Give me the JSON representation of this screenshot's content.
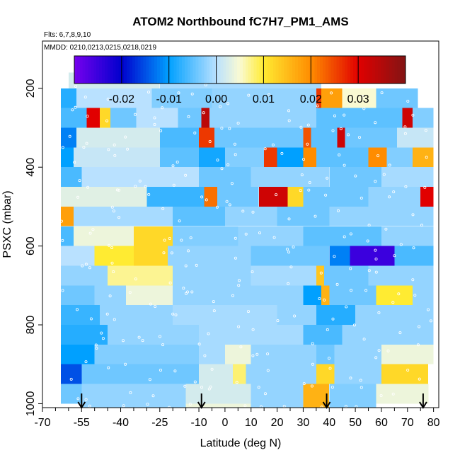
{
  "chart_data": {
    "type": "heatmap",
    "title": "ATOM2 Northbound fC7H7_PM1_AMS",
    "subtitle_flights": "Flts: 6,7,8,9,10",
    "subtitle_dates": "MMDD: 0210,0213,0215,0218,0219",
    "xlabel": "Latitude (deg N)",
    "ylabel": "PSXC (mbar)",
    "xlim": [
      -70,
      82
    ],
    "ylim": [
      1010,
      80
    ],
    "x_ticks": [
      -70,
      -55,
      -40,
      -25,
      -10,
      0,
      10,
      20,
      30,
      40,
      50,
      60,
      70,
      80
    ],
    "x_tick_labels": [
      "-70",
      "-55",
      "-40",
      "-25",
      "-10",
      "0",
      "10",
      "20",
      "30",
      "40",
      "50",
      "60",
      "70",
      "80"
    ],
    "y_ticks": [
      200,
      400,
      600,
      800,
      1000
    ],
    "y_tick_labels": [
      "200",
      "400",
      "600",
      "800",
      "1000"
    ],
    "colorbar": {
      "range": [
        -0.03,
        0.04
      ],
      "ticks": [
        -0.02,
        -0.01,
        0.0,
        0.01,
        0.02,
        0.03
      ],
      "tick_labels": [
        "-0.02",
        "-0.01",
        "0.00",
        "0.01",
        "0.02",
        "0.03"
      ]
    },
    "arrows_lat": [
      -55,
      -9,
      39,
      76
    ],
    "pressure_bands": [
      {
        "p_top": 160,
        "p_bot": 200,
        "segments": [
          {
            "x0": -60,
            "x1": -25,
            "v": 0.002
          },
          {
            "x0": -25,
            "x1": 37,
            "v": -0.001
          }
        ]
      },
      {
        "p_top": 200,
        "p_bot": 250,
        "segments": [
          {
            "x0": -63,
            "x1": -57,
            "v": -0.008
          },
          {
            "x0": -57,
            "x1": -28,
            "v": 0.0
          },
          {
            "x0": -28,
            "x1": -5,
            "v": -0.003
          },
          {
            "x0": -5,
            "x1": 35,
            "v": -0.002
          },
          {
            "x0": 35,
            "x1": 37,
            "v": 0.026
          },
          {
            "x0": 37,
            "x1": 45,
            "v": 0.018
          },
          {
            "x0": 45,
            "x1": 58,
            "v": 0.005
          },
          {
            "x0": 58,
            "x1": 74,
            "v": -0.004
          }
        ]
      },
      {
        "p_top": 250,
        "p_bot": 300,
        "segments": [
          {
            "x0": -63,
            "x1": -53,
            "v": -0.006
          },
          {
            "x0": -53,
            "x1": -48,
            "v": 0.03
          },
          {
            "x0": -48,
            "x1": -44,
            "v": 0.012
          },
          {
            "x0": -44,
            "x1": -34,
            "v": -0.004
          },
          {
            "x0": -34,
            "x1": -18,
            "v": 0.0
          },
          {
            "x0": -18,
            "x1": -9,
            "v": -0.004
          },
          {
            "x0": -9,
            "x1": -6,
            "v": 0.034
          },
          {
            "x0": -6,
            "x1": 35,
            "v": -0.002
          },
          {
            "x0": 35,
            "x1": 68,
            "v": -0.005
          },
          {
            "x0": 68,
            "x1": 72,
            "v": 0.032
          },
          {
            "x0": 72,
            "x1": 80,
            "v": -0.003
          }
        ]
      },
      {
        "p_top": 300,
        "p_bot": 350,
        "segments": [
          {
            "x0": -63,
            "x1": -57,
            "v": -0.012
          },
          {
            "x0": -57,
            "x1": -25,
            "v": 0.002
          },
          {
            "x0": -25,
            "x1": -10,
            "v": -0.006
          },
          {
            "x0": -10,
            "x1": -4,
            "v": 0.026
          },
          {
            "x0": -4,
            "x1": 30,
            "v": -0.004
          },
          {
            "x0": 30,
            "x1": 33,
            "v": 0.024
          },
          {
            "x0": 33,
            "x1": 43,
            "v": -0.005
          },
          {
            "x0": 43,
            "x1": 46,
            "v": 0.032
          },
          {
            "x0": 46,
            "x1": 66,
            "v": -0.004
          },
          {
            "x0": 66,
            "x1": 80,
            "v": 0.001
          }
        ]
      },
      {
        "p_top": 350,
        "p_bot": 400,
        "segments": [
          {
            "x0": -63,
            "x1": -58,
            "v": -0.01
          },
          {
            "x0": -58,
            "x1": -25,
            "v": 0.001
          },
          {
            "x0": -25,
            "x1": -10,
            "v": -0.005
          },
          {
            "x0": -10,
            "x1": 0,
            "v": -0.009
          },
          {
            "x0": 0,
            "x1": 15,
            "v": -0.003
          },
          {
            "x0": 15,
            "x1": 20,
            "v": 0.026
          },
          {
            "x0": 20,
            "x1": 30,
            "v": -0.01
          },
          {
            "x0": 30,
            "x1": 35,
            "v": 0.02
          },
          {
            "x0": 35,
            "x1": 55,
            "v": -0.005
          },
          {
            "x0": 55,
            "x1": 62,
            "v": 0.02
          },
          {
            "x0": 62,
            "x1": 72,
            "v": -0.003
          },
          {
            "x0": 72,
            "x1": 80,
            "v": 0.016
          }
        ]
      },
      {
        "p_top": 400,
        "p_bot": 450,
        "segments": [
          {
            "x0": -63,
            "x1": -55,
            "v": -0.006
          },
          {
            "x0": -55,
            "x1": -10,
            "v": 0.0
          },
          {
            "x0": -10,
            "x1": 10,
            "v": -0.004
          },
          {
            "x0": 10,
            "x1": 40,
            "v": -0.002
          },
          {
            "x0": 40,
            "x1": 60,
            "v": -0.004
          },
          {
            "x0": 60,
            "x1": 80,
            "v": -0.001
          }
        ]
      },
      {
        "p_top": 450,
        "p_bot": 500,
        "segments": [
          {
            "x0": -63,
            "x1": -30,
            "v": 0.003
          },
          {
            "x0": -30,
            "x1": -8,
            "v": -0.007
          },
          {
            "x0": -8,
            "x1": -3,
            "v": 0.022
          },
          {
            "x0": -3,
            "x1": 13,
            "v": -0.004
          },
          {
            "x0": 13,
            "x1": 24,
            "v": 0.032
          },
          {
            "x0": 24,
            "x1": 30,
            "v": 0.012
          },
          {
            "x0": 30,
            "x1": 55,
            "v": -0.004
          },
          {
            "x0": 55,
            "x1": 75,
            "v": -0.002
          },
          {
            "x0": 75,
            "x1": 80,
            "v": 0.03
          }
        ]
      },
      {
        "p_top": 500,
        "p_bot": 550,
        "segments": [
          {
            "x0": -63,
            "x1": -58,
            "v": 0.018
          },
          {
            "x0": -58,
            "x1": -20,
            "v": -0.001
          },
          {
            "x0": -20,
            "x1": 0,
            "v": -0.005
          },
          {
            "x0": 0,
            "x1": 20,
            "v": -0.002
          },
          {
            "x0": 20,
            "x1": 40,
            "v": -0.004
          },
          {
            "x0": 40,
            "x1": 80,
            "v": -0.002
          }
        ]
      },
      {
        "p_top": 550,
        "p_bot": 600,
        "segments": [
          {
            "x0": -63,
            "x1": -58,
            "v": -0.006
          },
          {
            "x0": -58,
            "x1": -35,
            "v": 0.004
          },
          {
            "x0": -35,
            "x1": -20,
            "v": 0.012
          },
          {
            "x0": -20,
            "x1": 5,
            "v": -0.003
          },
          {
            "x0": 5,
            "x1": 30,
            "v": -0.002
          },
          {
            "x0": 30,
            "x1": 60,
            "v": -0.005
          },
          {
            "x0": 60,
            "x1": 80,
            "v": -0.002
          }
        ]
      },
      {
        "p_top": 600,
        "p_bot": 650,
        "segments": [
          {
            "x0": -63,
            "x1": -50,
            "v": 0.0
          },
          {
            "x0": -50,
            "x1": -35,
            "v": 0.01
          },
          {
            "x0": -35,
            "x1": -22,
            "v": 0.012
          },
          {
            "x0": -22,
            "x1": 10,
            "v": -0.002
          },
          {
            "x0": 10,
            "x1": 40,
            "v": -0.004
          },
          {
            "x0": 40,
            "x1": 48,
            "v": -0.012
          },
          {
            "x0": 48,
            "x1": 65,
            "v": -0.025
          },
          {
            "x0": 65,
            "x1": 80,
            "v": -0.006
          }
        ]
      },
      {
        "p_top": 650,
        "p_bot": 700,
        "segments": [
          {
            "x0": -63,
            "x1": -45,
            "v": -0.002
          },
          {
            "x0": -45,
            "x1": -20,
            "v": 0.007
          },
          {
            "x0": -20,
            "x1": 10,
            "v": -0.002
          },
          {
            "x0": 10,
            "x1": 35,
            "v": -0.001
          },
          {
            "x0": 35,
            "x1": 38,
            "v": 0.014
          },
          {
            "x0": 38,
            "x1": 55,
            "v": -0.004
          },
          {
            "x0": 55,
            "x1": 80,
            "v": -0.002
          }
        ]
      },
      {
        "p_top": 700,
        "p_bot": 750,
        "segments": [
          {
            "x0": -63,
            "x1": -50,
            "v": -0.004
          },
          {
            "x0": -50,
            "x1": -38,
            "v": -0.002
          },
          {
            "x0": -38,
            "x1": -20,
            "v": 0.004
          },
          {
            "x0": -20,
            "x1": 30,
            "v": -0.002
          },
          {
            "x0": 30,
            "x1": 37,
            "v": -0.01
          },
          {
            "x0": 37,
            "x1": 40,
            "v": 0.016
          },
          {
            "x0": 40,
            "x1": 58,
            "v": -0.004
          },
          {
            "x0": 58,
            "x1": 72,
            "v": 0.01
          },
          {
            "x0": 72,
            "x1": 80,
            "v": -0.002
          }
        ]
      },
      {
        "p_top": 750,
        "p_bot": 800,
        "segments": [
          {
            "x0": -63,
            "x1": -48,
            "v": -0.007
          },
          {
            "x0": -48,
            "x1": -20,
            "v": -0.002
          },
          {
            "x0": -20,
            "x1": 20,
            "v": -0.001
          },
          {
            "x0": 20,
            "x1": 35,
            "v": -0.002
          },
          {
            "x0": 35,
            "x1": 50,
            "v": -0.008
          },
          {
            "x0": 50,
            "x1": 80,
            "v": -0.002
          }
        ]
      },
      {
        "p_top": 800,
        "p_bot": 850,
        "segments": [
          {
            "x0": -63,
            "x1": -45,
            "v": -0.008
          },
          {
            "x0": -45,
            "x1": -10,
            "v": -0.002
          },
          {
            "x0": -10,
            "x1": 30,
            "v": -0.001
          },
          {
            "x0": 30,
            "x1": 45,
            "v": -0.006
          },
          {
            "x0": 45,
            "x1": 80,
            "v": -0.002
          }
        ]
      },
      {
        "p_top": 850,
        "p_bot": 900,
        "segments": [
          {
            "x0": -63,
            "x1": -50,
            "v": -0.01
          },
          {
            "x0": -50,
            "x1": -10,
            "v": -0.003
          },
          {
            "x0": -10,
            "x1": 0,
            "v": -0.001
          },
          {
            "x0": 0,
            "x1": 10,
            "v": 0.004
          },
          {
            "x0": 10,
            "x1": 35,
            "v": -0.002
          },
          {
            "x0": 35,
            "x1": 42,
            "v": -0.004
          },
          {
            "x0": 42,
            "x1": 60,
            "v": -0.002
          },
          {
            "x0": 60,
            "x1": 80,
            "v": 0.004
          }
        ]
      },
      {
        "p_top": 900,
        "p_bot": 950,
        "segments": [
          {
            "x0": -63,
            "x1": -55,
            "v": -0.015
          },
          {
            "x0": -55,
            "x1": -10,
            "v": -0.004
          },
          {
            "x0": -10,
            "x1": 3,
            "v": 0.002
          },
          {
            "x0": 3,
            "x1": 8,
            "v": 0.008
          },
          {
            "x0": 8,
            "x1": 35,
            "v": -0.002
          },
          {
            "x0": 35,
            "x1": 42,
            "v": 0.012
          },
          {
            "x0": 42,
            "x1": 60,
            "v": -0.002
          },
          {
            "x0": 60,
            "x1": 78,
            "v": 0.012
          }
        ]
      },
      {
        "p_top": 950,
        "p_bot": 1000,
        "segments": [
          {
            "x0": -63,
            "x1": -55,
            "v": -0.004
          },
          {
            "x0": -55,
            "x1": -15,
            "v": -0.002
          },
          {
            "x0": -15,
            "x1": 10,
            "v": 0.002
          },
          {
            "x0": 10,
            "x1": 30,
            "v": -0.002
          },
          {
            "x0": 30,
            "x1": 40,
            "v": 0.016
          },
          {
            "x0": 40,
            "x1": 58,
            "v": -0.003
          },
          {
            "x0": 58,
            "x1": 78,
            "v": 0.004
          }
        ]
      },
      {
        "p_top": 1000,
        "p_bot": 1010,
        "segments": [
          {
            "x0": -55,
            "x1": -15,
            "v": -0.002
          },
          {
            "x0": -15,
            "x1": 10,
            "v": 0.004
          },
          {
            "x0": 10,
            "x1": 30,
            "v": -0.002
          },
          {
            "x0": 30,
            "x1": 40,
            "v": 0.016
          },
          {
            "x0": 40,
            "x1": 58,
            "v": -0.003
          }
        ]
      }
    ]
  }
}
